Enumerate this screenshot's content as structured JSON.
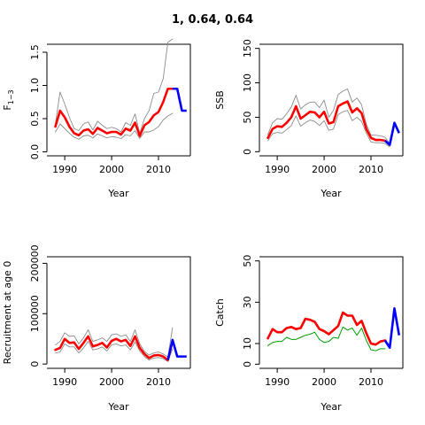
{
  "figure": {
    "title": "1, 0.64, 0.64"
  },
  "colors": {
    "estimate": "#ff0000",
    "interval": "#8c8c8c",
    "projection": "#0000ff",
    "axis": "#000000"
  },
  "chart_data": [
    {
      "type": "line",
      "panel": "top-left",
      "xlabel": "Year",
      "ylabel": "F",
      "ylabel_subscript": "1−3",
      "xlim": [
        1986.2,
        2016.8
      ],
      "ylim": [
        -0.06,
        1.62
      ],
      "xticks": [
        1990,
        2000,
        2010
      ],
      "yticks": [
        0.0,
        0.5,
        1.0,
        1.5
      ],
      "ytick_labels": [
        "0.0",
        "0.5",
        "1.0",
        "1.5"
      ],
      "x": [
        1988,
        1989,
        1990,
        1991,
        1992,
        1993,
        1994,
        1995,
        1996,
        1997,
        1998,
        1999,
        2000,
        2001,
        2002,
        2003,
        2004,
        2005,
        2006,
        2007,
        2008,
        2009,
        2010,
        2011,
        2012,
        2013
      ],
      "series": [
        {
          "role": "upper",
          "values": [
            0.42,
            0.9,
            0.72,
            0.52,
            0.35,
            0.32,
            0.42,
            0.45,
            0.33,
            0.46,
            0.4,
            0.35,
            0.37,
            0.35,
            0.3,
            0.44,
            0.4,
            0.57,
            0.28,
            0.5,
            0.62,
            0.88,
            0.9,
            1.1,
            1.65,
            1.7
          ]
        },
        {
          "role": "estimate",
          "values": [
            0.38,
            0.62,
            0.52,
            0.38,
            0.28,
            0.25,
            0.32,
            0.34,
            0.27,
            0.36,
            0.32,
            0.28,
            0.3,
            0.3,
            0.26,
            0.35,
            0.32,
            0.44,
            0.24,
            0.4,
            0.45,
            0.55,
            0.6,
            0.75,
            0.95,
            0.95
          ]
        },
        {
          "role": "lower",
          "values": [
            0.3,
            0.42,
            0.35,
            0.28,
            0.22,
            0.19,
            0.24,
            0.25,
            0.21,
            0.27,
            0.24,
            0.21,
            0.23,
            0.22,
            0.2,
            0.26,
            0.24,
            0.32,
            0.2,
            0.3,
            0.3,
            0.33,
            0.38,
            0.48,
            0.54,
            0.58
          ]
        }
      ],
      "projection": {
        "x": [
          2013,
          2014,
          2015,
          2016
        ],
        "values": [
          0.95,
          0.95,
          0.62,
          0.62
        ]
      }
    },
    {
      "type": "line",
      "panel": "top-right",
      "xlabel": "Year",
      "ylabel": "SSB",
      "xlim": [
        1986.2,
        2016.8
      ],
      "ylim": [
        -6,
        156
      ],
      "xticks": [
        1990,
        2000,
        2010
      ],
      "yticks": [
        0,
        50,
        100,
        150
      ],
      "ytick_labels": [
        "0",
        "50",
        "100",
        "150"
      ],
      "x": [
        1988,
        1989,
        1990,
        1991,
        1992,
        1993,
        1994,
        1995,
        1996,
        1997,
        1998,
        1999,
        2000,
        2001,
        2002,
        2003,
        2004,
        2005,
        2006,
        2007,
        2008,
        2009,
        2010,
        2011,
        2012,
        2013,
        2014
      ],
      "series": [
        {
          "role": "upper",
          "values": [
            25,
            42,
            48,
            47,
            55,
            65,
            82,
            62,
            68,
            72,
            72,
            64,
            75,
            50,
            60,
            83,
            88,
            91,
            72,
            78,
            68,
            40,
            24,
            24,
            23,
            21,
            12
          ]
        },
        {
          "role": "estimate",
          "values": [
            20,
            33,
            37,
            36,
            42,
            50,
            66,
            48,
            53,
            58,
            57,
            50,
            58,
            41,
            43,
            66,
            70,
            73,
            57,
            63,
            56,
            33,
            20,
            17,
            17,
            16,
            10
          ]
        },
        {
          "role": "lower",
          "values": [
            16,
            26,
            28,
            27,
            32,
            38,
            52,
            37,
            42,
            46,
            44,
            38,
            45,
            31,
            33,
            54,
            58,
            60,
            45,
            50,
            44,
            27,
            14,
            13,
            13,
            12,
            7
          ]
        }
      ],
      "projection": {
        "x": [
          2013,
          2014,
          2015,
          2016
        ],
        "values": [
          16,
          10,
          42,
          27
        ]
      }
    },
    {
      "type": "line",
      "panel": "bottom-left",
      "xlabel": "Year",
      "ylabel": "Recruitment at age 0",
      "xlim": [
        1986.2,
        2016.8
      ],
      "ylim": [
        -8500,
        213000
      ],
      "xticks": [
        1990,
        2000,
        2010
      ],
      "yticks": [
        0,
        100000,
        200000
      ],
      "ytick_labels": [
        "0",
        "100000",
        "200000"
      ],
      "x": [
        1988,
        1989,
        1990,
        1991,
        1992,
        1993,
        1994,
        1995,
        1996,
        1997,
        1998,
        1999,
        2000,
        2001,
        2002,
        2003,
        2004,
        2005,
        2006,
        2007,
        2008,
        2009,
        2010,
        2011,
        2012,
        2013
      ],
      "series": [
        {
          "role": "upper",
          "values": [
            38000,
            45000,
            62000,
            55000,
            56000,
            40000,
            52000,
            68000,
            45000,
            48000,
            52000,
            45000,
            58000,
            60000,
            55000,
            58000,
            45000,
            68000,
            40000,
            25000,
            18000,
            22000,
            24000,
            20000,
            14000,
            72000
          ]
        },
        {
          "role": "estimate",
          "values": [
            28000,
            32000,
            50000,
            42000,
            43000,
            30000,
            42000,
            55000,
            35000,
            38000,
            42000,
            33000,
            46000,
            50000,
            45000,
            48000,
            36000,
            55000,
            32000,
            20000,
            12000,
            17000,
            18000,
            15000,
            8000,
            45000
          ]
        },
        {
          "role": "lower",
          "values": [
            22000,
            24000,
            40000,
            34000,
            34000,
            22000,
            32000,
            45000,
            28000,
            30000,
            34000,
            26000,
            38000,
            40000,
            36000,
            38000,
            28000,
            44000,
            26000,
            15000,
            8000,
            12000,
            13000,
            11000,
            5000,
            30000
          ]
        }
      ],
      "projection": {
        "x": [
          2012,
          2013,
          2014,
          2015,
          2016
        ],
        "values": [
          8000,
          48000,
          15000,
          15000,
          15000
        ]
      }
    },
    {
      "type": "line",
      "panel": "bottom-right",
      "xlabel": "Year",
      "ylabel": "Catch",
      "xlim": [
        1986.2,
        2016.8
      ],
      "ylim": [
        -2,
        52
      ],
      "xticks": [
        1990,
        2000,
        2010
      ],
      "yticks": [
        0,
        10,
        30,
        50
      ],
      "ytick_labels": [
        "0",
        "10",
        "30",
        "50"
      ],
      "x": [
        1988,
        1989,
        1990,
        1991,
        1992,
        1993,
        1994,
        1995,
        1996,
        1997,
        1998,
        1999,
        2000,
        2001,
        2002,
        2003,
        2004,
        2005,
        2006,
        2007,
        2008,
        2009,
        2010,
        2011,
        2012,
        2013
      ],
      "series": [
        {
          "role": "estimate",
          "values": [
            12.5,
            17,
            15.5,
            15.5,
            17.5,
            18,
            17,
            17.5,
            22,
            21.5,
            20.5,
            17,
            16,
            14.5,
            16.5,
            18.5,
            25,
            23.5,
            23.5,
            19,
            21,
            15,
            10,
            9.5,
            11,
            11.5
          ]
        },
        {
          "role": "observed",
          "values": [
            9,
            10.5,
            11,
            11,
            13,
            12,
            12,
            13,
            14,
            14.5,
            15.5,
            12,
            10.5,
            11,
            13,
            12.5,
            18,
            16.5,
            17.5,
            14,
            17.5,
            11.5,
            7,
            6.5,
            7.5,
            7.5
          ]
        }
      ],
      "projection": {
        "x": [
          2013,
          2014,
          2015,
          2016
        ],
        "values": [
          11.5,
          8,
          27,
          14
        ]
      }
    }
  ]
}
